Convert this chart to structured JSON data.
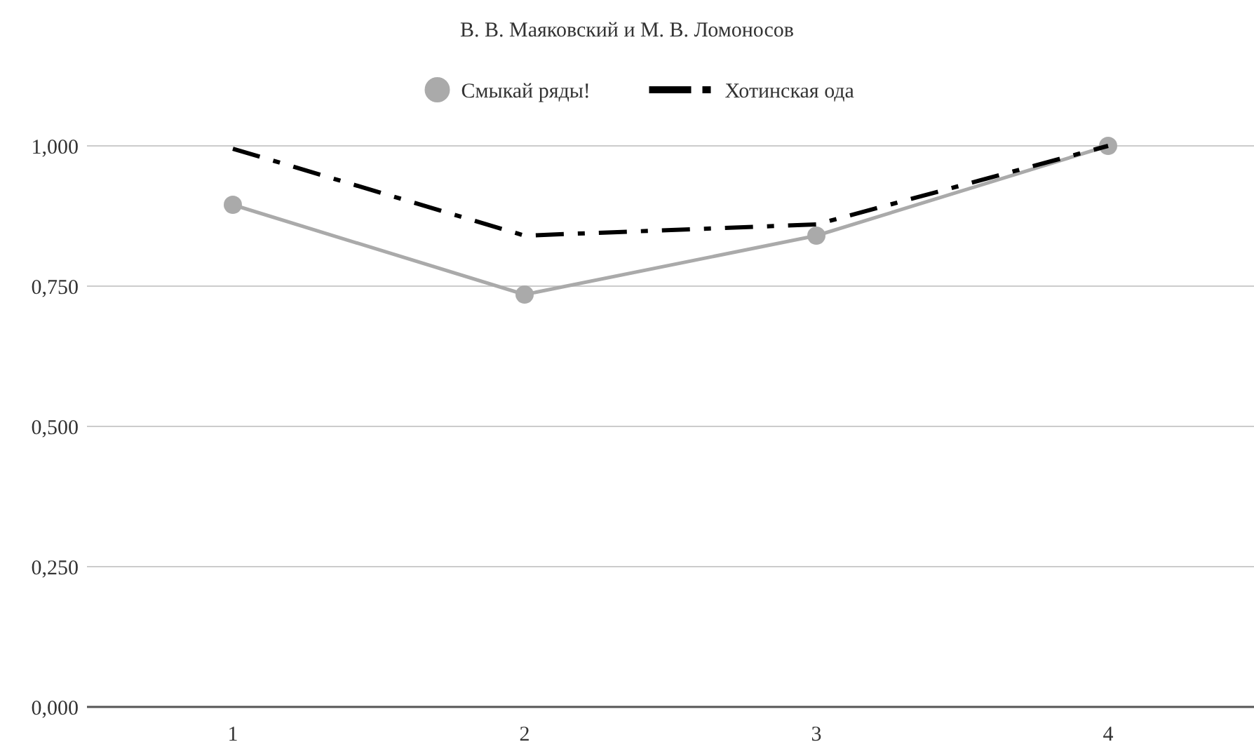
{
  "chart_data": {
    "type": "line",
    "title": "В. В. Маяковский и М. В. Ломоносов",
    "categories": [
      "1",
      "2",
      "3",
      "4"
    ],
    "series": [
      {
        "name": "Смыкай ряды!",
        "color": "#aaaaaa",
        "values": [
          0.895,
          0.735,
          0.84,
          1.0
        ],
        "marker": "circle",
        "line_style": "solid"
      },
      {
        "name": "Хотинская ода",
        "color": "#000000",
        "values": [
          0.995,
          0.84,
          0.86,
          1.0
        ],
        "marker": "none",
        "line_style": "dashed"
      }
    ],
    "ylim": [
      0,
      1
    ],
    "yticks": [
      {
        "value": 0,
        "label": "0,000"
      },
      {
        "value": 0.25,
        "label": "0,250"
      },
      {
        "value": 0.5,
        "label": "0,500"
      },
      {
        "value": 0.75,
        "label": "0,750"
      },
      {
        "value": 1,
        "label": "1,000"
      }
    ],
    "grid": "y",
    "legend": "top"
  }
}
